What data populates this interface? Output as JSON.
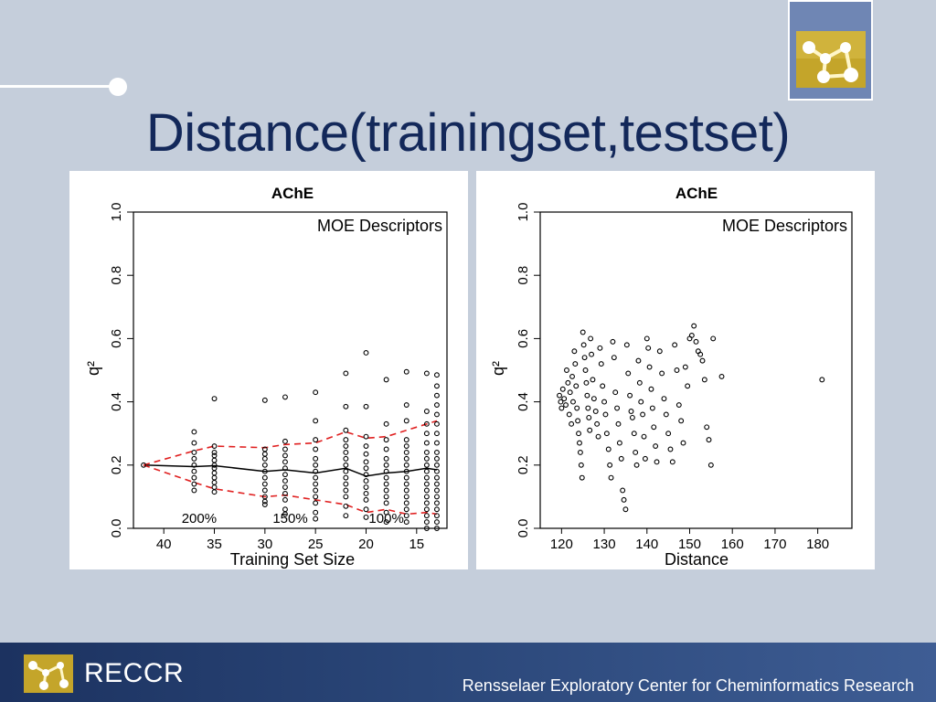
{
  "slide": {
    "title": "Distance(trainingset,testset)",
    "footer_brand": "RECCR",
    "footer_org": "Rensselaer Exploratory Center for Cheminformatics Research",
    "colors": {
      "background": "#c5cedb",
      "title": "#13285a",
      "footer": "#2a4678",
      "logo_bg": "#6f86b4"
    }
  },
  "chart_data": [
    {
      "type": "scatter",
      "title": "AChE",
      "annotation": "MOE Descriptors",
      "xlabel": "Training Set Size",
      "ylabel": "q²",
      "xlim": [
        43,
        12
      ],
      "ylim": [
        0,
        1
      ],
      "xticks": [
        "40",
        "35",
        "30",
        "25",
        "20",
        "15"
      ],
      "yticks": [
        "0.0",
        "0.2",
        "0.4",
        "0.6",
        "0.8",
        "1.0"
      ],
      "region_labels": [
        {
          "label": "200%",
          "x": 36.5
        },
        {
          "label": "150%",
          "x": 27.5
        },
        {
          "label": "100%",
          "x": 18
        }
      ],
      "x": [
        42,
        37,
        35,
        30,
        28,
        25,
        22,
        20,
        18,
        16,
        14,
        13
      ],
      "series": [
        {
          "name": "mean",
          "style": "solid",
          "color": "#000000",
          "values": [
            0.2,
            0.195,
            0.198,
            0.18,
            0.185,
            0.175,
            0.19,
            0.165,
            0.175,
            0.18,
            0.19,
            0.185
          ]
        },
        {
          "name": "upper",
          "style": "dashed",
          "color": "#e02020",
          "values": [
            0.2,
            0.245,
            0.26,
            0.255,
            0.265,
            0.27,
            0.305,
            0.285,
            0.29,
            0.31,
            0.33,
            0.34
          ]
        },
        {
          "name": "lower",
          "style": "dashed",
          "color": "#e02020",
          "values": [
            0.2,
            0.145,
            0.125,
            0.1,
            0.105,
            0.09,
            0.075,
            0.05,
            0.06,
            0.045,
            0.05,
            0.045
          ]
        }
      ],
      "points": [
        [
          42,
          0.2
        ],
        [
          37,
          0.305
        ],
        [
          37,
          0.27
        ],
        [
          37,
          0.24
        ],
        [
          37,
          0.22
        ],
        [
          37,
          0.2
        ],
        [
          37,
          0.18
        ],
        [
          37,
          0.16
        ],
        [
          37,
          0.14
        ],
        [
          37,
          0.12
        ],
        [
          35,
          0.41
        ],
        [
          35,
          0.26
        ],
        [
          35,
          0.24
        ],
        [
          35,
          0.23
        ],
        [
          35,
          0.215
        ],
        [
          35,
          0.2
        ],
        [
          35,
          0.19
        ],
        [
          35,
          0.175
        ],
        [
          35,
          0.16
        ],
        [
          35,
          0.145
        ],
        [
          35,
          0.13
        ],
        [
          35,
          0.115
        ],
        [
          30,
          0.405
        ],
        [
          30,
          0.25
        ],
        [
          30,
          0.235
        ],
        [
          30,
          0.22
        ],
        [
          30,
          0.2
        ],
        [
          30,
          0.18
        ],
        [
          30,
          0.16
        ],
        [
          30,
          0.14
        ],
        [
          30,
          0.12
        ],
        [
          30,
          0.1
        ],
        [
          30,
          0.085
        ],
        [
          30,
          0.075
        ],
        [
          28,
          0.415
        ],
        [
          28,
          0.275
        ],
        [
          28,
          0.25
        ],
        [
          28,
          0.23
        ],
        [
          28,
          0.21
        ],
        [
          28,
          0.19
        ],
        [
          28,
          0.17
        ],
        [
          28,
          0.15
        ],
        [
          28,
          0.13
        ],
        [
          28,
          0.11
        ],
        [
          28,
          0.09
        ],
        [
          28,
          0.06
        ],
        [
          28,
          0.045
        ],
        [
          25,
          0.43
        ],
        [
          25,
          0.34
        ],
        [
          25,
          0.28
        ],
        [
          25,
          0.25
        ],
        [
          25,
          0.22
        ],
        [
          25,
          0.2
        ],
        [
          25,
          0.18
        ],
        [
          25,
          0.16
        ],
        [
          25,
          0.14
        ],
        [
          25,
          0.12
        ],
        [
          25,
          0.1
        ],
        [
          25,
          0.08
        ],
        [
          25,
          0.05
        ],
        [
          25,
          0.03
        ],
        [
          22,
          0.49
        ],
        [
          22,
          0.385
        ],
        [
          22,
          0.31
        ],
        [
          22,
          0.28
        ],
        [
          22,
          0.26
        ],
        [
          22,
          0.24
        ],
        [
          22,
          0.22
        ],
        [
          22,
          0.2
        ],
        [
          22,
          0.18
        ],
        [
          22,
          0.16
        ],
        [
          22,
          0.14
        ],
        [
          22,
          0.12
        ],
        [
          22,
          0.1
        ],
        [
          22,
          0.07
        ],
        [
          22,
          0.04
        ],
        [
          20,
          0.555
        ],
        [
          20,
          0.385
        ],
        [
          20,
          0.29
        ],
        [
          20,
          0.26
        ],
        [
          20,
          0.235
        ],
        [
          20,
          0.21
        ],
        [
          20,
          0.19
        ],
        [
          20,
          0.17
        ],
        [
          20,
          0.15
        ],
        [
          20,
          0.13
        ],
        [
          20,
          0.11
        ],
        [
          20,
          0.09
        ],
        [
          20,
          0.06
        ],
        [
          20,
          0.035
        ],
        [
          18,
          0.47
        ],
        [
          18,
          0.33
        ],
        [
          18,
          0.28
        ],
        [
          18,
          0.25
        ],
        [
          18,
          0.22
        ],
        [
          18,
          0.2
        ],
        [
          18,
          0.18
        ],
        [
          18,
          0.16
        ],
        [
          18,
          0.14
        ],
        [
          18,
          0.12
        ],
        [
          18,
          0.1
        ],
        [
          18,
          0.08
        ],
        [
          18,
          0.05
        ],
        [
          18,
          0.02
        ],
        [
          16,
          0.495
        ],
        [
          16,
          0.39
        ],
        [
          16,
          0.34
        ],
        [
          16,
          0.28
        ],
        [
          16,
          0.26
        ],
        [
          16,
          0.24
        ],
        [
          16,
          0.22
        ],
        [
          16,
          0.2
        ],
        [
          16,
          0.18
        ],
        [
          16,
          0.16
        ],
        [
          16,
          0.14
        ],
        [
          16,
          0.12
        ],
        [
          16,
          0.1
        ],
        [
          16,
          0.08
        ],
        [
          16,
          0.06
        ],
        [
          16,
          0.04
        ],
        [
          16,
          0.02
        ],
        [
          14,
          0.49
        ],
        [
          14,
          0.37
        ],
        [
          14,
          0.33
        ],
        [
          14,
          0.3
        ],
        [
          14,
          0.27
        ],
        [
          14,
          0.24
        ],
        [
          14,
          0.22
        ],
        [
          14,
          0.2
        ],
        [
          14,
          0.18
        ],
        [
          14,
          0.16
        ],
        [
          14,
          0.14
        ],
        [
          14,
          0.12
        ],
        [
          14,
          0.1
        ],
        [
          14,
          0.08
        ],
        [
          14,
          0.06
        ],
        [
          14,
          0.04
        ],
        [
          14,
          0.02
        ],
        [
          14,
          0.0
        ],
        [
          13,
          0.485
        ],
        [
          13,
          0.45
        ],
        [
          13,
          0.42
        ],
        [
          13,
          0.39
        ],
        [
          13,
          0.36
        ],
        [
          13,
          0.33
        ],
        [
          13,
          0.3
        ],
        [
          13,
          0.27
        ],
        [
          13,
          0.24
        ],
        [
          13,
          0.22
        ],
        [
          13,
          0.2
        ],
        [
          13,
          0.18
        ],
        [
          13,
          0.16
        ],
        [
          13,
          0.14
        ],
        [
          13,
          0.12
        ],
        [
          13,
          0.1
        ],
        [
          13,
          0.08
        ],
        [
          13,
          0.06
        ],
        [
          13,
          0.04
        ],
        [
          13,
          0.02
        ],
        [
          13,
          0.0
        ]
      ],
      "grid": false,
      "legend": "none"
    },
    {
      "type": "scatter",
      "title": "AChE",
      "annotation": "MOE Descriptors",
      "xlabel": "Distance",
      "ylabel": "q²",
      "xlim": [
        115,
        188
      ],
      "ylim": [
        0,
        1
      ],
      "xticks": [
        "120",
        "130",
        "140",
        "150",
        "160",
        "170",
        "180"
      ],
      "yticks": [
        "0.0",
        "0.2",
        "0.4",
        "0.6",
        "0.8",
        "1.0"
      ],
      "points": [
        [
          119.5,
          0.42
        ],
        [
          119.8,
          0.4
        ],
        [
          120,
          0.38
        ],
        [
          120.3,
          0.44
        ],
        [
          120.6,
          0.41
        ],
        [
          121,
          0.39
        ],
        [
          121.2,
          0.5
        ],
        [
          121.5,
          0.46
        ],
        [
          121.8,
          0.36
        ],
        [
          122,
          0.43
        ],
        [
          122.3,
          0.33
        ],
        [
          122.5,
          0.48
        ],
        [
          122.7,
          0.4
        ],
        [
          123,
          0.56
        ],
        [
          123.2,
          0.52
        ],
        [
          123.4,
          0.45
        ],
        [
          123.6,
          0.38
        ],
        [
          123.8,
          0.34
        ],
        [
          124,
          0.3
        ],
        [
          124.2,
          0.27
        ],
        [
          124.4,
          0.24
        ],
        [
          124.6,
          0.2
        ],
        [
          124.8,
          0.16
        ],
        [
          125,
          0.62
        ],
        [
          125.2,
          0.58
        ],
        [
          125.4,
          0.54
        ],
        [
          125.6,
          0.5
        ],
        [
          125.8,
          0.46
        ],
        [
          126,
          0.42
        ],
        [
          126.2,
          0.38
        ],
        [
          126.4,
          0.35
        ],
        [
          126.6,
          0.31
        ],
        [
          126.8,
          0.6
        ],
        [
          127,
          0.55
        ],
        [
          127.3,
          0.47
        ],
        [
          127.6,
          0.41
        ],
        [
          128,
          0.37
        ],
        [
          128.3,
          0.33
        ],
        [
          128.6,
          0.29
        ],
        [
          129,
          0.57
        ],
        [
          129.3,
          0.52
        ],
        [
          129.6,
          0.45
        ],
        [
          130,
          0.4
        ],
        [
          130.3,
          0.36
        ],
        [
          130.6,
          0.3
        ],
        [
          131,
          0.25
        ],
        [
          131.3,
          0.2
        ],
        [
          131.6,
          0.16
        ],
        [
          132,
          0.59
        ],
        [
          132.3,
          0.54
        ],
        [
          132.6,
          0.43
        ],
        [
          133,
          0.38
        ],
        [
          133.3,
          0.33
        ],
        [
          133.6,
          0.27
        ],
        [
          134,
          0.22
        ],
        [
          134.3,
          0.12
        ],
        [
          134.6,
          0.09
        ],
        [
          135,
          0.06
        ],
        [
          135.3,
          0.58
        ],
        [
          135.6,
          0.49
        ],
        [
          136,
          0.42
        ],
        [
          136.3,
          0.37
        ],
        [
          136.6,
          0.35
        ],
        [
          137,
          0.3
        ],
        [
          137.3,
          0.24
        ],
        [
          137.6,
          0.2
        ],
        [
          138,
          0.53
        ],
        [
          138.3,
          0.46
        ],
        [
          138.6,
          0.4
        ],
        [
          139,
          0.36
        ],
        [
          139.3,
          0.29
        ],
        [
          139.6,
          0.22
        ],
        [
          140,
          0.6
        ],
        [
          140.3,
          0.57
        ],
        [
          140.6,
          0.51
        ],
        [
          141,
          0.44
        ],
        [
          141.3,
          0.38
        ],
        [
          141.6,
          0.32
        ],
        [
          142,
          0.26
        ],
        [
          142.3,
          0.21
        ],
        [
          143,
          0.56
        ],
        [
          143.5,
          0.49
        ],
        [
          144,
          0.41
        ],
        [
          144.5,
          0.36
        ],
        [
          145,
          0.3
        ],
        [
          145.5,
          0.25
        ],
        [
          146,
          0.21
        ],
        [
          146.5,
          0.58
        ],
        [
          147,
          0.5
        ],
        [
          147.5,
          0.39
        ],
        [
          148,
          0.34
        ],
        [
          148.5,
          0.27
        ],
        [
          149,
          0.51
        ],
        [
          149.5,
          0.45
        ],
        [
          150,
          0.6
        ],
        [
          150.5,
          0.61
        ],
        [
          151,
          0.64
        ],
        [
          151.5,
          0.59
        ],
        [
          152,
          0.56
        ],
        [
          152.5,
          0.55
        ],
        [
          153,
          0.53
        ],
        [
          153.5,
          0.47
        ],
        [
          154,
          0.32
        ],
        [
          154.5,
          0.28
        ],
        [
          155,
          0.2
        ],
        [
          155.5,
          0.6
        ],
        [
          157.5,
          0.48
        ],
        [
          181,
          0.47
        ]
      ],
      "grid": false,
      "legend": "none"
    }
  ]
}
